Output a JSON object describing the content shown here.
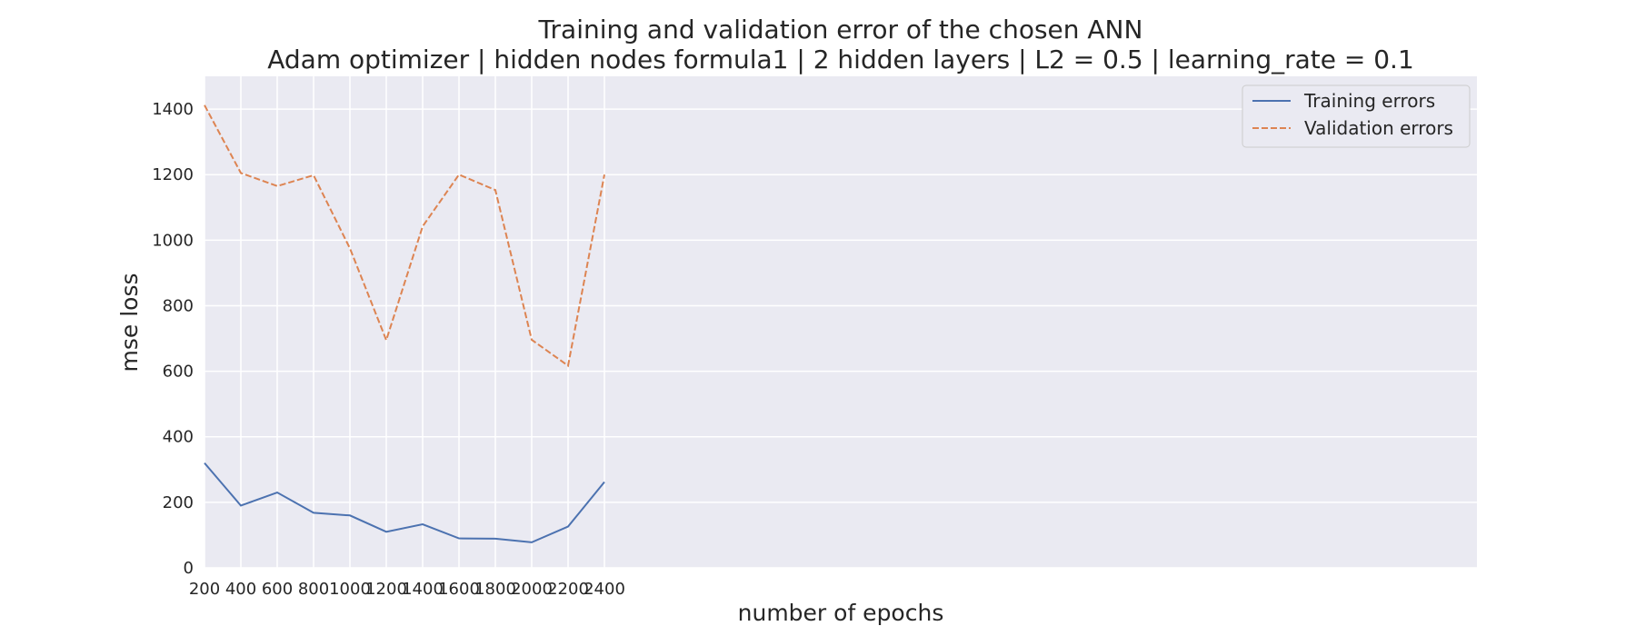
{
  "chart_data": {
    "type": "line",
    "title": "Training and validation error of the chosen ANN",
    "subtitle": "Adam optimizer | hidden nodes formula1 | 2 hidden layers | L2 = 0.5 | learning_rate = 0.1",
    "xlabel": "number of epochs",
    "ylabel": "mse loss",
    "x": [
      200,
      400,
      600,
      800,
      1000,
      1200,
      1400,
      1600,
      1800,
      2000,
      2200,
      2400
    ],
    "x_ticks": [
      "200",
      "400",
      "600",
      "800",
      "1000",
      "1200",
      "1400",
      "1600",
      "1800",
      "2000",
      "2200",
      "2400"
    ],
    "y_ticks": [
      "0",
      "200",
      "400",
      "600",
      "800",
      "1000",
      "1200",
      "1400"
    ],
    "xlim": [
      200,
      7200
    ],
    "ylim": [
      0,
      1500
    ],
    "grid": true,
    "legend_position": "top-right",
    "background_color": "#eaeaf2",
    "series": [
      {
        "name": "Training errors",
        "color": "#4c72b0",
        "dash": "solid",
        "values": [
          320,
          190,
          230,
          168,
          160,
          110,
          133,
          90,
          89,
          78,
          126,
          262
        ]
      },
      {
        "name": "Validation errors",
        "color": "#dd8452",
        "dash": "dashed",
        "values": [
          1412,
          1205,
          1165,
          1198,
          975,
          695,
          1042,
          1200,
          1153,
          696,
          617,
          1200
        ]
      }
    ]
  }
}
